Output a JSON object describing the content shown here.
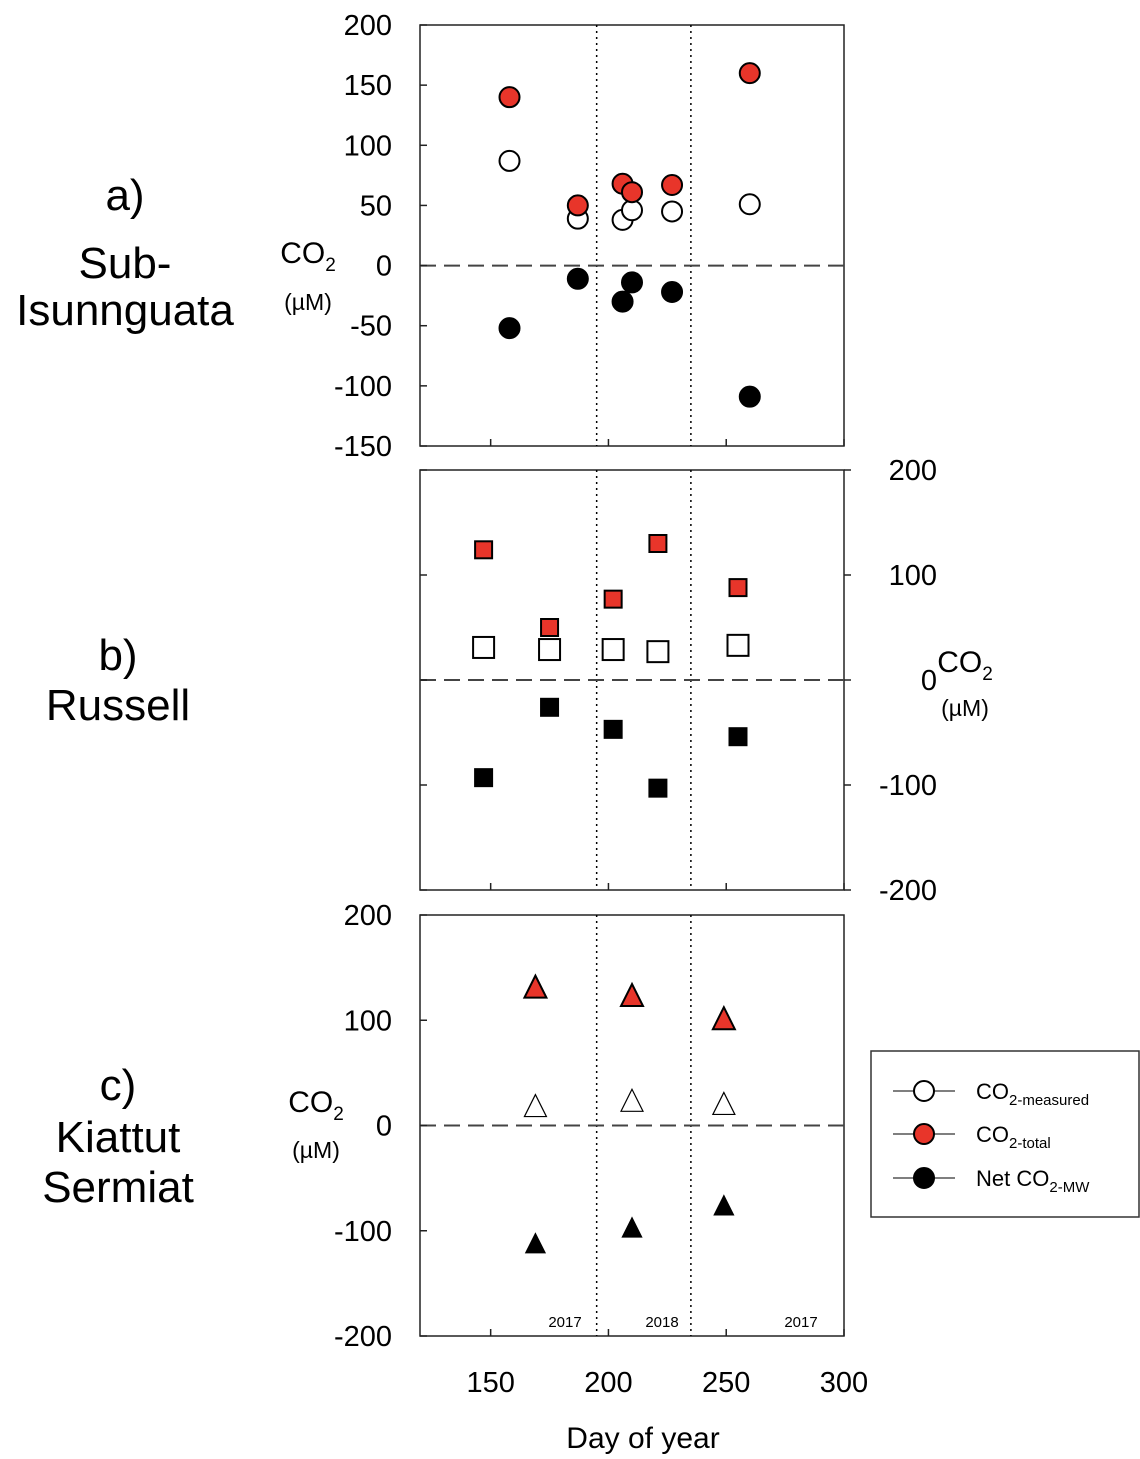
{
  "chart_data": {
    "type": "scatter",
    "xlabel": "Day of year",
    "xlim": [
      120,
      300
    ],
    "xticks": [
      "150",
      "200",
      "250",
      "300"
    ],
    "vlines": [
      195,
      235
    ],
    "zero_line": "dashed",
    "year_labels": [
      "2017",
      "2018",
      "2017"
    ],
    "legend": {
      "placement": "right",
      "items": [
        {
          "key": "measured",
          "prefix": "CO",
          "sub": "2-measured",
          "fill": "#ffffff"
        },
        {
          "key": "total",
          "prefix": "CO",
          "sub": "2-total",
          "fill": "#e8352a"
        },
        {
          "key": "net",
          "prefix": "Net CO",
          "sub": "2-MW",
          "fill": "#000000"
        }
      ]
    },
    "panels": [
      {
        "id": "a",
        "label_lines": [
          "a)",
          "Sub-",
          "Isunnguata"
        ],
        "marker": "circle",
        "ylabel": "CO",
        "ylabel_sub": "2",
        "yunits": "(µM)",
        "ylim": [
          -150,
          200
        ],
        "yticks": [
          "200",
          "150",
          "100",
          "50",
          "0",
          "-50",
          "-100",
          "-150"
        ],
        "yaxis_side": "left",
        "series": [
          {
            "name": "CO2-measured",
            "fill": "#ffffff",
            "points": [
              [
                158,
                87
              ],
              [
                187,
                39
              ],
              [
                206,
                38
              ],
              [
                210,
                46
              ],
              [
                227,
                45
              ],
              [
                260,
                51
              ]
            ]
          },
          {
            "name": "CO2-total",
            "fill": "#e8352a",
            "points": [
              [
                158,
                140
              ],
              [
                187,
                50
              ],
              [
                206,
                68
              ],
              [
                210,
                61
              ],
              [
                227,
                67
              ],
              [
                260,
                160
              ]
            ]
          },
          {
            "name": "Net CO2-MW",
            "fill": "#000000",
            "points": [
              [
                158,
                -52
              ],
              [
                187,
                -11
              ],
              [
                206,
                -30
              ],
              [
                210,
                -14
              ],
              [
                227,
                -22
              ],
              [
                260,
                -109
              ]
            ]
          }
        ]
      },
      {
        "id": "b",
        "label_lines": [
          "b)",
          "Russell"
        ],
        "marker": "square",
        "ylabel": "CO",
        "ylabel_sub": "2",
        "yunits": "(µM)",
        "ylim": [
          -200,
          200
        ],
        "yticks": [
          "200",
          "100",
          "0",
          "-100",
          "-200"
        ],
        "yaxis_side": "right",
        "series": [
          {
            "name": "CO2-measured",
            "fill": "#ffffff",
            "points": [
              [
                147,
                31
              ],
              [
                175,
                29
              ],
              [
                202,
                29
              ],
              [
                221,
                27
              ],
              [
                255,
                33
              ]
            ]
          },
          {
            "name": "CO2-total",
            "fill": "#e8352a",
            "points": [
              [
                147,
                124
              ],
              [
                175,
                50
              ],
              [
                202,
                77
              ],
              [
                221,
                130
              ],
              [
                255,
                88
              ]
            ]
          },
          {
            "name": "Net CO2-MW",
            "fill": "#000000",
            "points": [
              [
                147,
                -93
              ],
              [
                175,
                -26
              ],
              [
                202,
                -47
              ],
              [
                221,
                -103
              ],
              [
                255,
                -54
              ]
            ]
          }
        ]
      },
      {
        "id": "c",
        "label_lines": [
          "c)",
          "Kiattut",
          "Sermiat"
        ],
        "marker": "triangle",
        "ylabel": "CO",
        "ylabel_sub": "2",
        "yunits": "(µM)",
        "ylim": [
          -200,
          200
        ],
        "yticks": [
          "200",
          "100",
          "0",
          "-100",
          "-200"
        ],
        "yaxis_side": "left",
        "series": [
          {
            "name": "CO2-measured",
            "fill": "#ffffff",
            "points": [
              [
                169,
                18
              ],
              [
                210,
                23
              ],
              [
                249,
                20
              ]
            ]
          },
          {
            "name": "CO2-total",
            "fill": "#e8352a",
            "points": [
              [
                169,
                131
              ],
              [
                210,
                123
              ],
              [
                249,
                101
              ]
            ]
          },
          {
            "name": "Net CO2-MW",
            "fill": "#000000",
            "points": [
              [
                169,
                -113
              ],
              [
                210,
                -98
              ],
              [
                249,
                -77
              ]
            ]
          }
        ]
      }
    ]
  }
}
